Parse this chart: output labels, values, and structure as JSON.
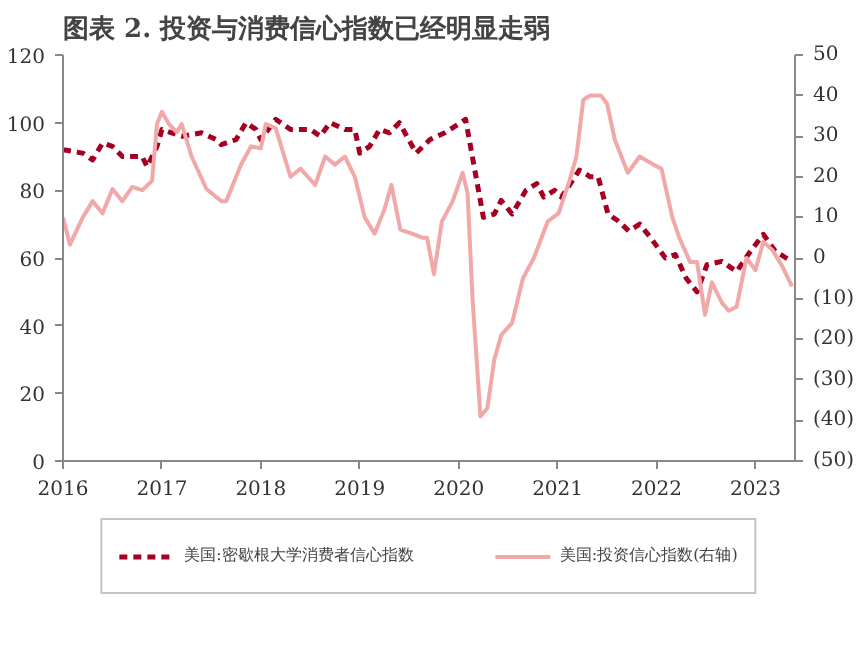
{
  "chart_data": {
    "type": "line",
    "title": "图表 2. 投资与消费信心指数已经明显走弱",
    "xlim": [
      2016,
      2023.4
    ],
    "xticks": [
      2016,
      2017,
      2018,
      2019,
      2020,
      2021,
      2022,
      2023
    ],
    "ylim": [
      0,
      120
    ],
    "yticks": [
      0,
      20,
      40,
      60,
      80,
      100,
      120
    ],
    "y2lim": [
      -50,
      50
    ],
    "y2ticks": [
      {
        "value": -50,
        "label": "(50)"
      },
      {
        "value": -40,
        "label": "(40)"
      },
      {
        "value": -30,
        "label": "(30)"
      },
      {
        "value": -20,
        "label": "(20)"
      },
      {
        "value": -10,
        "label": "(10)"
      },
      0,
      10,
      20,
      30,
      40,
      50
    ],
    "grid": false,
    "legend": "bottom",
    "series": [
      {
        "name": "美国:密歇根大学消费者信心指数",
        "color": "#a50021",
        "line_style": "dashed",
        "x": [
          2016.0,
          2016.2,
          2016.3,
          2016.4,
          2016.5,
          2016.6,
          2016.8,
          2016.85,
          2016.95,
          2017.0,
          2017.2,
          2017.4,
          2017.55,
          2017.6,
          2017.75,
          2017.85,
          2017.95,
          2018.0,
          2018.1,
          2018.15,
          2018.3,
          2018.5,
          2018.6,
          2018.7,
          2018.85,
          2018.95,
          2019.0,
          2019.1,
          2019.2,
          2019.3,
          2019.4,
          2019.57,
          2019.71,
          2019.86,
          2020.0,
          2020.07,
          2020.25,
          2020.36,
          2020.43,
          2020.54,
          2020.68,
          2020.79,
          2020.86,
          2020.97,
          2021.04,
          2021.22,
          2021.33,
          2021.41,
          2021.51,
          2021.61,
          2021.72,
          2021.83,
          2021.94,
          2022.09,
          2022.19,
          2022.3,
          2022.41,
          2022.51,
          2022.66,
          2022.81,
          2022.95,
          2023.08,
          2023.2,
          2023.31,
          2023.37
        ],
        "values": [
          92,
          91,
          89,
          94,
          93,
          90,
          90,
          87,
          93,
          98,
          96,
          97,
          95,
          93.5,
          95,
          100,
          98,
          95,
          99,
          101,
          98,
          98,
          96,
          100,
          98,
          98,
          91,
          93,
          98,
          97,
          100,
          91,
          95,
          97,
          99.6,
          101,
          72,
          73,
          77,
          73,
          80,
          82,
          78,
          80,
          78,
          86,
          84,
          84,
          73,
          71,
          68,
          70,
          66,
          60,
          61,
          54,
          50,
          58,
          59,
          56,
          62,
          67,
          62,
          60,
          59
        ]
      },
      {
        "name": "美国:投资信心指数(右轴)",
        "color": "#f0a8a8",
        "axis": "y2",
        "line_style": "solid",
        "x": [
          2016.0,
          2016.07,
          2016.2,
          2016.3,
          2016.4,
          2016.5,
          2016.6,
          2016.7,
          2016.8,
          2016.9,
          2016.95,
          2017.0,
          2017.07,
          2017.15,
          2017.2,
          2017.3,
          2017.45,
          2017.6,
          2017.65,
          2017.8,
          2017.9,
          2018.0,
          2018.05,
          2018.15,
          2018.3,
          2018.4,
          2018.55,
          2018.65,
          2018.75,
          2018.85,
          2018.95,
          2019.05,
          2019.15,
          2019.25,
          2019.32,
          2019.41,
          2019.53,
          2019.63,
          2019.68,
          2019.75,
          2019.83,
          2019.94,
          2020.04,
          2020.09,
          2020.14,
          2020.22,
          2020.29,
          2020.36,
          2020.43,
          2020.54,
          2020.65,
          2020.76,
          2020.9,
          2021.01,
          2021.12,
          2021.19,
          2021.26,
          2021.33,
          2021.44,
          2021.5,
          2021.58,
          2021.71,
          2021.83,
          2021.97,
          2022.05,
          2022.16,
          2022.23,
          2022.34,
          2022.41,
          2022.49,
          2022.56,
          2022.66,
          2022.73,
          2022.81,
          2022.91,
          2023.0,
          2023.08,
          2023.17,
          2023.27,
          2023.37
        ],
        "values": [
          10,
          3.3,
          10,
          14,
          11,
          17,
          14,
          17.5,
          16.7,
          19,
          33,
          36,
          33,
          31,
          33,
          25,
          17,
          14,
          14,
          23,
          27.5,
          27,
          33,
          32,
          20,
          22,
          18,
          25,
          23,
          25,
          20,
          10,
          6,
          12,
          18,
          7,
          6,
          5,
          5,
          -4,
          9,
          14,
          21,
          16,
          -10,
          -39,
          -37,
          -25,
          -19,
          -16,
          -5,
          0,
          9,
          11,
          19,
          25,
          39,
          40,
          40,
          38,
          29,
          21,
          25,
          23,
          22,
          10,
          5,
          -1,
          -1,
          -14,
          -6,
          -11,
          -13,
          -12,
          0,
          -3,
          4,
          2,
          -2,
          -7
        ]
      }
    ]
  }
}
